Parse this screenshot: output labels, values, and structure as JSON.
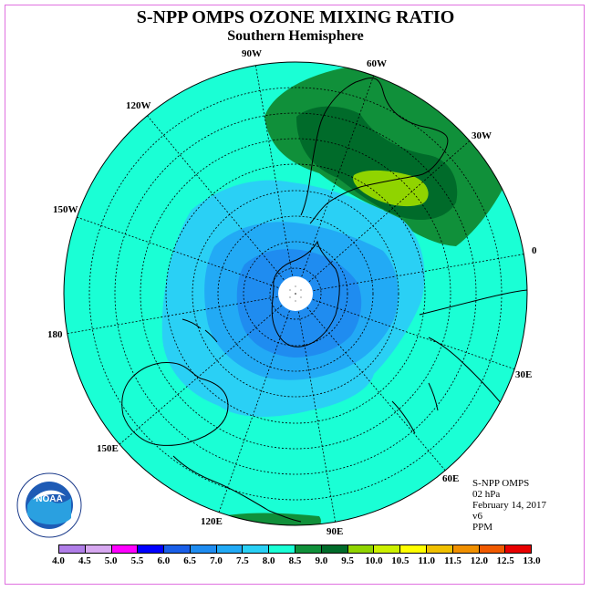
{
  "title": "S-NPP OMPS OZONE MIXING RATIO",
  "subtitle": "Southern Hemisphere",
  "lon_labels": [
    "90W",
    "60W",
    "30W",
    "0",
    "30E",
    "60E",
    "90E",
    "120E",
    "150E",
    "180",
    "150W",
    "120W"
  ],
  "info": {
    "instrument": "S-NPP OMPS",
    "level": "02 hPa",
    "date": "February 14, 2017",
    "version": "v6",
    "units": "PPM"
  },
  "logo": {
    "text": "NOAA",
    "ring_text": "NATIONAL OCEANIC AND ATMOSPHERIC ADMINISTRATION"
  },
  "colorbar": {
    "ticks": [
      "4.0",
      "4.5",
      "5.0",
      "5.5",
      "6.0",
      "6.5",
      "7.0",
      "7.5",
      "8.0",
      "8.5",
      "9.0",
      "9.5",
      "10.0",
      "10.5",
      "11.0",
      "11.5",
      "12.0",
      "12.5",
      "13.0"
    ],
    "colors": [
      "#b07ee8",
      "#d7a8f0",
      "#ff00ff",
      "#0000ff",
      "#1a5fe8",
      "#1f8cf0",
      "#22aaf5",
      "#2ad0f5",
      "#1affd5",
      "#10903a",
      "#006b2a",
      "#90d400",
      "#ccf000",
      "#ffff00",
      "#f0c000",
      "#f09000",
      "#f05a00",
      "#e80000",
      "#8c5a3c"
    ]
  },
  "map_levels": [
    {
      "level": "8.0",
      "color": "#1affd5"
    },
    {
      "level": "8.5",
      "color": "#10903a"
    },
    {
      "level": "9.0",
      "color": "#006b2a"
    },
    {
      "level": "9.5",
      "color": "#90d400"
    },
    {
      "level": "7.5",
      "color": "#2ad0f5"
    },
    {
      "level": "7.0",
      "color": "#22aaf5"
    },
    {
      "level": "6.5",
      "color": "#1f8cf0"
    }
  ]
}
